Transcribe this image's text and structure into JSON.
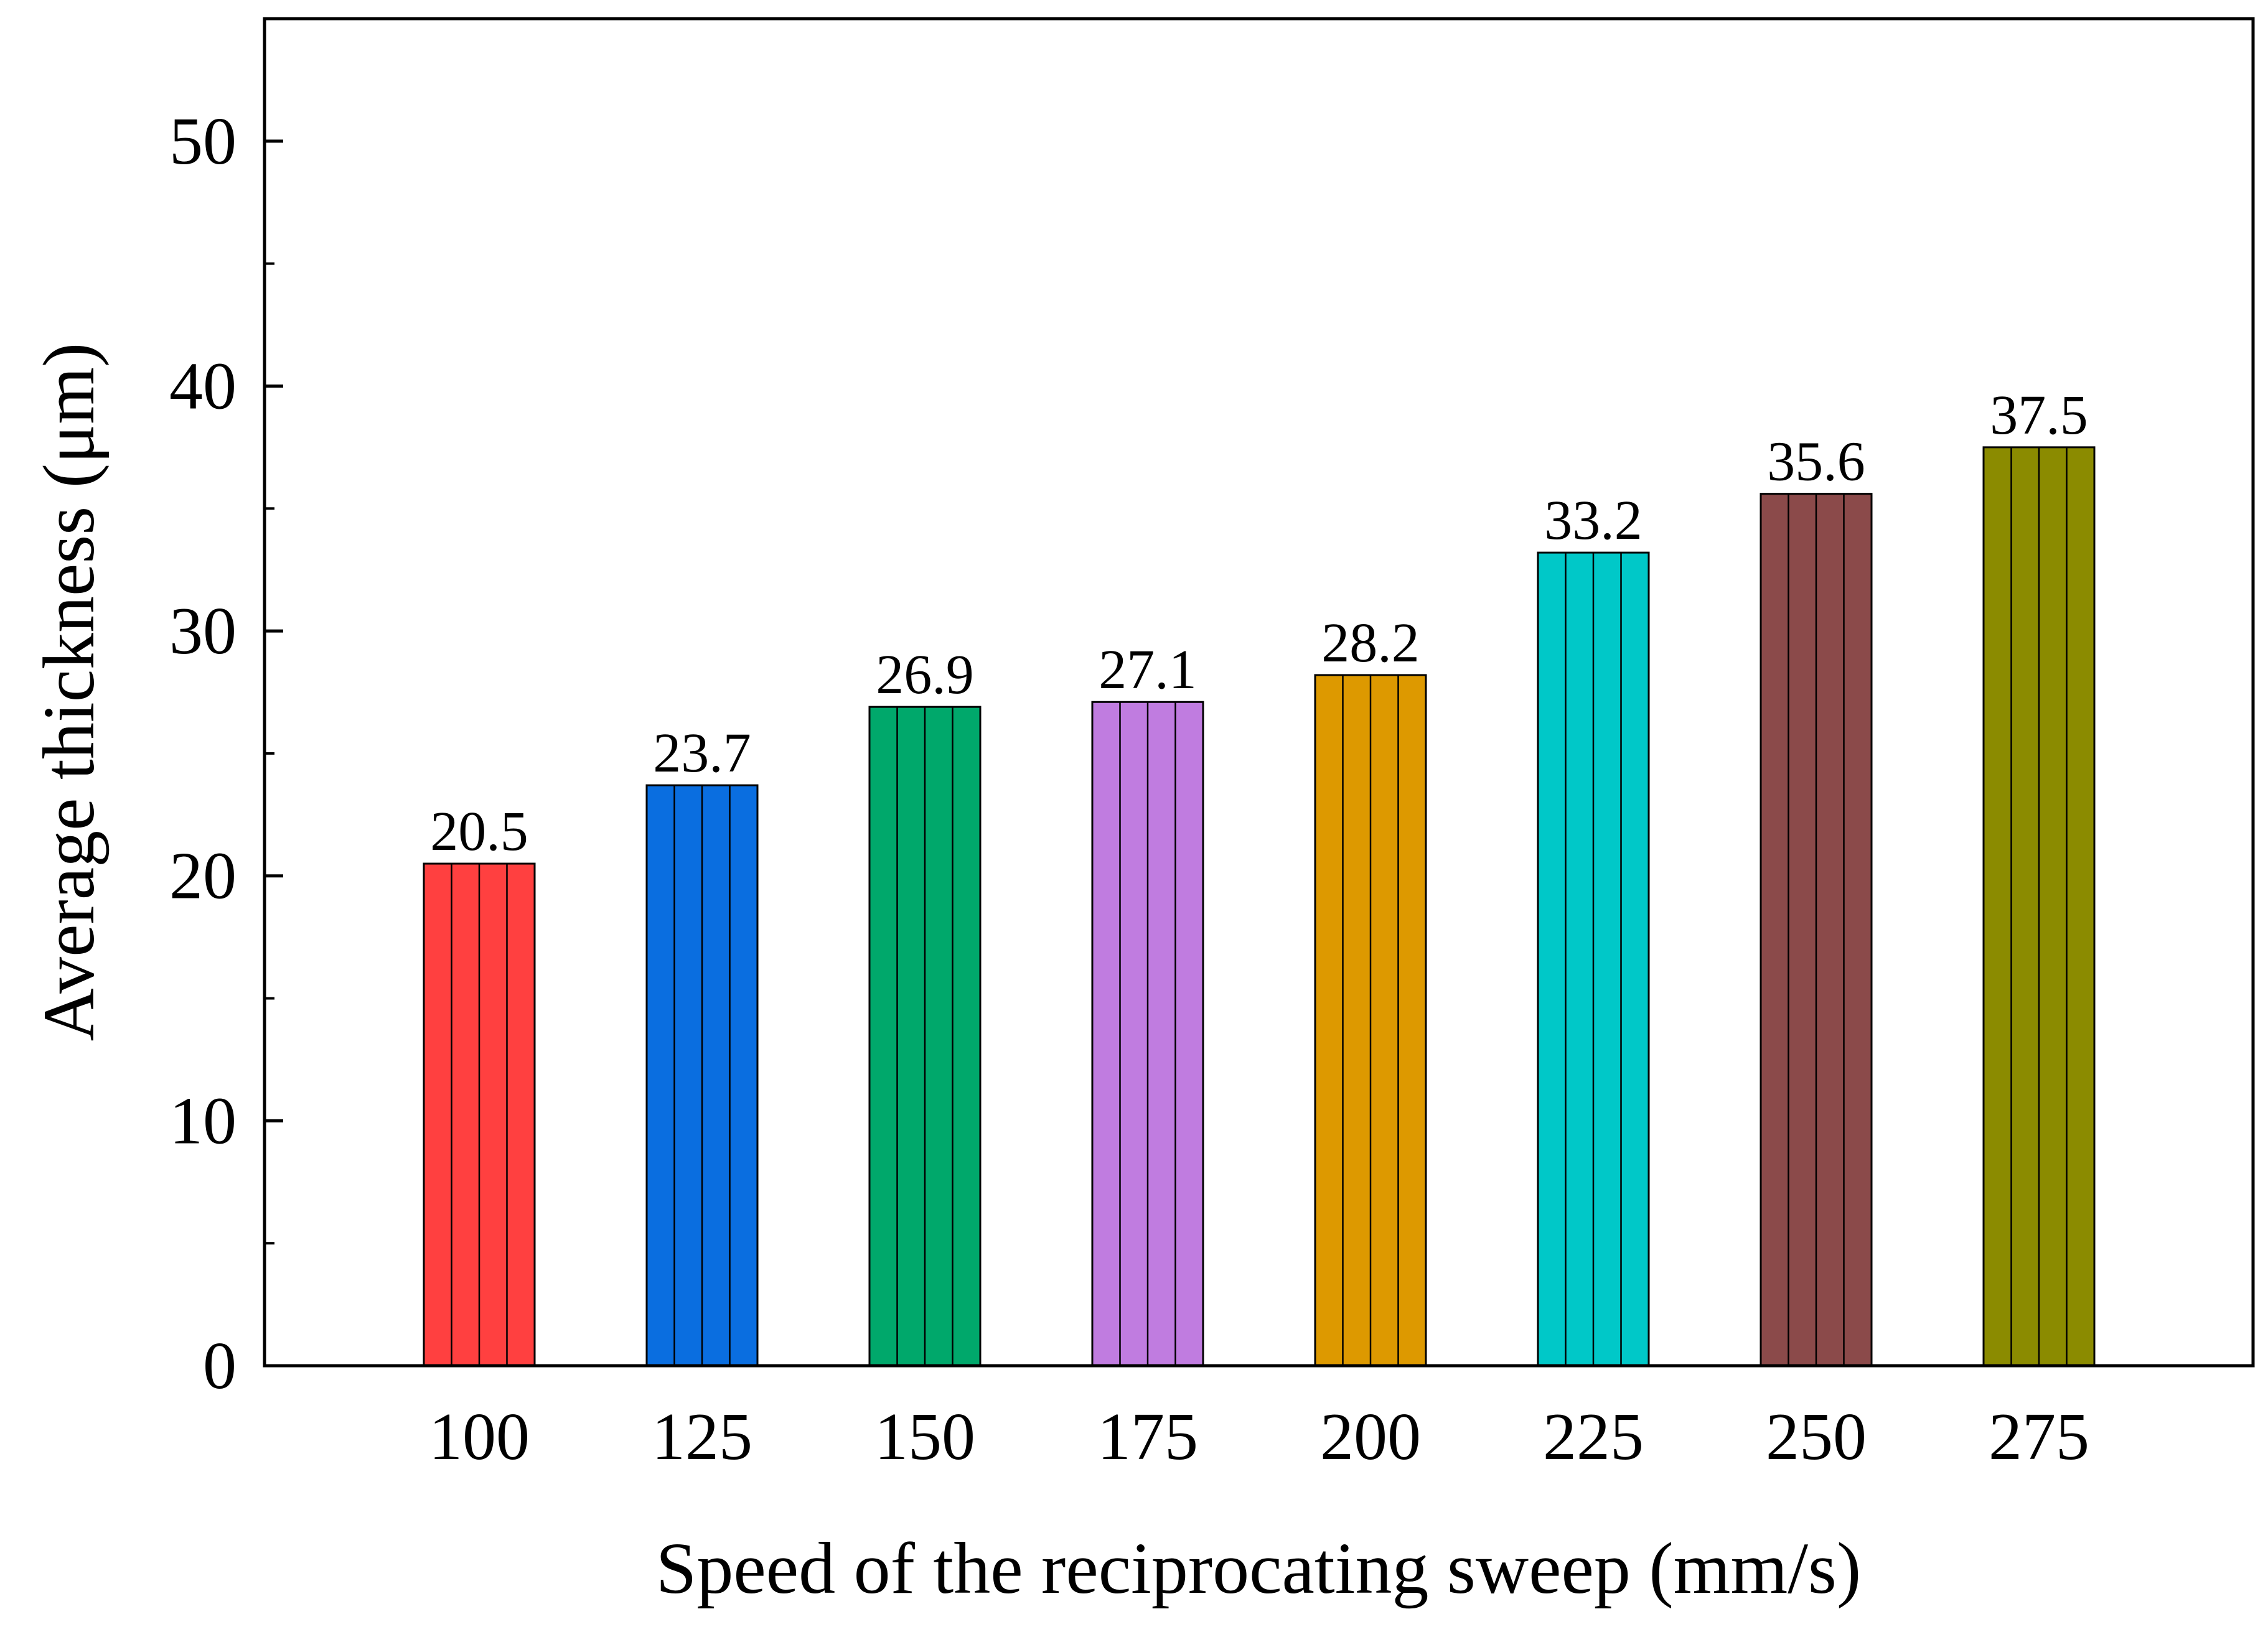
{
  "chart_data": {
    "type": "bar",
    "categories": [
      "100",
      "125",
      "150",
      "175",
      "200",
      "225",
      "250",
      "275"
    ],
    "values": [
      20.5,
      23.7,
      26.9,
      27.1,
      28.2,
      33.2,
      35.6,
      37.5
    ],
    "data_labels": [
      "20.5",
      "23.7",
      "26.9",
      "27.1",
      "28.2",
      "33.2",
      "35.6",
      "37.5"
    ],
    "bar_colors": [
      "#ff4040",
      "#0a6ee0",
      "#00a86b",
      "#c07ce0",
      "#dd9900",
      "#00c8c8",
      "#8b4a4a",
      "#8b8b00"
    ],
    "bar_pattern": "vertical-lines",
    "title": "",
    "xlabel": "Speed of the reciprocating sweep (mm/s)",
    "ylabel": "Average thickness (μm)",
    "ylim": [
      0,
      55
    ],
    "yticks": [
      0,
      10,
      20,
      30,
      40,
      50
    ],
    "ytick_labels": [
      "0",
      "10",
      "20",
      "30",
      "40",
      "50"
    ],
    "minor_yticks": [
      5,
      15,
      25,
      35,
      45
    ],
    "grid": false,
    "legend": "none"
  }
}
